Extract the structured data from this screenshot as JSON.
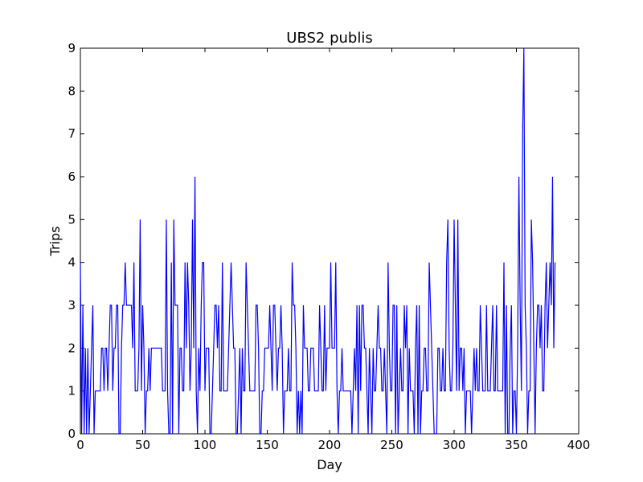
{
  "chart_data": {
    "type": "line",
    "title": "UBS2 publis",
    "xlabel": "Day",
    "ylabel": "Trips",
    "xlim": [
      0,
      400
    ],
    "ylim": [
      0,
      9
    ],
    "x_ticks": [
      0,
      50,
      100,
      150,
      200,
      250,
      300,
      350,
      400
    ],
    "y_ticks": [
      0,
      1,
      2,
      3,
      4,
      5,
      6,
      7,
      8,
      9
    ],
    "grid": false,
    "legend": "none",
    "series": [
      {
        "color": "#0000ff",
        "x_start": 0,
        "x_step": 1,
        "values": [
          4,
          0,
          3,
          0,
          2,
          0,
          2,
          0,
          1,
          2,
          3,
          0,
          1,
          1,
          1,
          1,
          1,
          2,
          2,
          1,
          2,
          2,
          1,
          2,
          3,
          3,
          1,
          2,
          2,
          3,
          3,
          0,
          0,
          2,
          3,
          3,
          4,
          3,
          3,
          3,
          3,
          3,
          2,
          4,
          1,
          1,
          1,
          2,
          5,
          1,
          3,
          2,
          0,
          1,
          1,
          2,
          1,
          2,
          2,
          2,
          2,
          2,
          2,
          2,
          2,
          2,
          1,
          1,
          1,
          5,
          1,
          0,
          0,
          4,
          0,
          5,
          3,
          3,
          3,
          0,
          2,
          2,
          1,
          1,
          4,
          2,
          4,
          3,
          1,
          2,
          5,
          2,
          6,
          1,
          0,
          2,
          1,
          3,
          4,
          4,
          1,
          2,
          2,
          2,
          0,
          0,
          1,
          2,
          3,
          3,
          2,
          3,
          1,
          1,
          4,
          1,
          1,
          1,
          1,
          2,
          3,
          4,
          3,
          2,
          2,
          0,
          0,
          1,
          2,
          0,
          2,
          1,
          1,
          4,
          3,
          2,
          1,
          1,
          1,
          1,
          1,
          3,
          3,
          2,
          0,
          0,
          1,
          1,
          2,
          2,
          2,
          2,
          3,
          2,
          1,
          3,
          3,
          2,
          1,
          2,
          2,
          3,
          2,
          0,
          1,
          1,
          1,
          2,
          1,
          1,
          4,
          3,
          3,
          2,
          0,
          1,
          0,
          1,
          0,
          3,
          2,
          2,
          2,
          1,
          1,
          2,
          2,
          2,
          1,
          1,
          1,
          1,
          3,
          2,
          1,
          1,
          3,
          1,
          2,
          2,
          2,
          4,
          2,
          2,
          2,
          4,
          1,
          0,
          1,
          1,
          2,
          1,
          1,
          1,
          1,
          1,
          1,
          1,
          0,
          1,
          2,
          1,
          3,
          0,
          3,
          1,
          3,
          3,
          2,
          2,
          1,
          0,
          2,
          1,
          0,
          2,
          1,
          1,
          2,
          3,
          2,
          2,
          1,
          1,
          2,
          1,
          0,
          4,
          2,
          1,
          1,
          3,
          3,
          0,
          3,
          0,
          1,
          2,
          1,
          1,
          3,
          2,
          3,
          0,
          2,
          1,
          1,
          1,
          0,
          2,
          3,
          0,
          3,
          0,
          1,
          1,
          2,
          2,
          1,
          1,
          4,
          3,
          2,
          1,
          0,
          0,
          0,
          2,
          2,
          1,
          1,
          2,
          1,
          1,
          4,
          5,
          2,
          1,
          1,
          2,
          5,
          3,
          1,
          5,
          1,
          2,
          2,
          1,
          2,
          0,
          1,
          1,
          1,
          1,
          0,
          1,
          2,
          1,
          2,
          1,
          1,
          3,
          2,
          1,
          1,
          1,
          3,
          1,
          1,
          1,
          2,
          3,
          1,
          1,
          3,
          1,
          1,
          1,
          1,
          1,
          4,
          0,
          3,
          0,
          0,
          2,
          3,
          0,
          1,
          1,
          0,
          2,
          6,
          3,
          1,
          7,
          9,
          3,
          2,
          0,
          1,
          1,
          5,
          4,
          2,
          0,
          2,
          3,
          3,
          2,
          3,
          1,
          1,
          3,
          4,
          2,
          3,
          4,
          3,
          6,
          2,
          4
        ]
      }
    ]
  }
}
